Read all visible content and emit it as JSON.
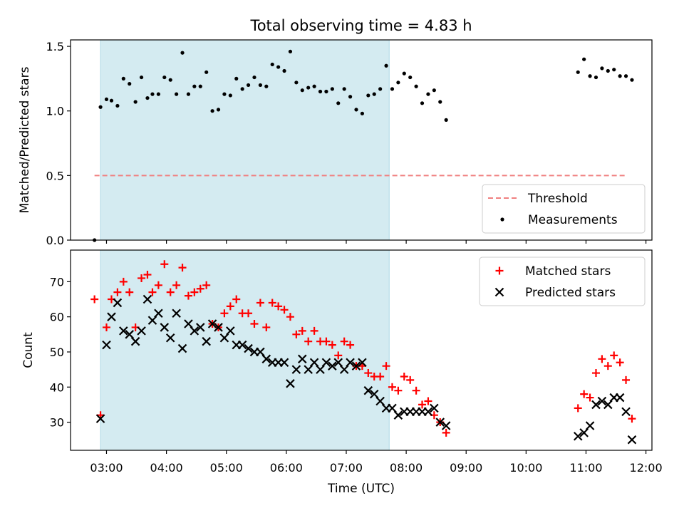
{
  "figure": {
    "title": "Total observing time = 4.83 h",
    "x_tick_labels": [
      "03:00",
      "04:00",
      "05:00",
      "06:00",
      "07:00",
      "08:00",
      "09:00",
      "10:00",
      "11:00",
      "12:00"
    ],
    "xlabel": "Time (UTC)"
  },
  "colors": {
    "shade": "#d4ebf1",
    "shade_edge": "#add8e6",
    "threshold": "#f08080",
    "matched": "#ff0000",
    "predicted": "#000000",
    "measurement": "#000000"
  },
  "chart_data": [
    {
      "type": "scatter",
      "name": "ratio-panel",
      "ylabel": "Matched/Predicted stars",
      "xlim": [
        "02:24",
        "12:06"
      ],
      "ylim": [
        0,
        1.55
      ],
      "y_ticks": [
        0,
        0.5,
        1.0,
        1.5
      ],
      "y_tick_labels": [
        "0.0",
        "0.5",
        "1.0",
        "1.5"
      ],
      "shaded_interval": [
        "02:54",
        "07:43"
      ],
      "threshold": {
        "label": "Threshold",
        "y": 0.5,
        "x_range": [
          "02:48",
          "11:40"
        ]
      },
      "legend_position": "lower-right",
      "series": [
        {
          "name": "Measurements",
          "points": [
            [
              "02:48",
              0.0
            ],
            [
              "02:54",
              1.03
            ],
            [
              "03:00",
              1.09
            ],
            [
              "03:05",
              1.08
            ],
            [
              "03:11",
              1.04
            ],
            [
              "03:17",
              1.25
            ],
            [
              "03:23",
              1.21
            ],
            [
              "03:29",
              1.07
            ],
            [
              "03:35",
              1.26
            ],
            [
              "03:41",
              1.1
            ],
            [
              "03:46",
              1.13
            ],
            [
              "03:52",
              1.13
            ],
            [
              "03:58",
              1.26
            ],
            [
              "04:04",
              1.24
            ],
            [
              "04:10",
              1.13
            ],
            [
              "04:16",
              1.45
            ],
            [
              "04:22",
              1.13
            ],
            [
              "04:28",
              1.19
            ],
            [
              "04:34",
              1.19
            ],
            [
              "04:40",
              1.3
            ],
            [
              "04:46",
              1.0
            ],
            [
              "04:52",
              1.01
            ],
            [
              "04:58",
              1.13
            ],
            [
              "05:04",
              1.12
            ],
            [
              "05:10",
              1.25
            ],
            [
              "05:16",
              1.17
            ],
            [
              "05:22",
              1.2
            ],
            [
              "05:28",
              1.26
            ],
            [
              "05:34",
              1.2
            ],
            [
              "05:40",
              1.19
            ],
            [
              "05:46",
              1.36
            ],
            [
              "05:52",
              1.34
            ],
            [
              "05:58",
              1.31
            ],
            [
              "06:04",
              1.46
            ],
            [
              "06:10",
              1.22
            ],
            [
              "06:16",
              1.16
            ],
            [
              "06:22",
              1.18
            ],
            [
              "06:28",
              1.19
            ],
            [
              "06:34",
              1.15
            ],
            [
              "06:40",
              1.15
            ],
            [
              "06:46",
              1.17
            ],
            [
              "06:52",
              1.06
            ],
            [
              "06:58",
              1.17
            ],
            [
              "07:04",
              1.11
            ],
            [
              "07:10",
              1.01
            ],
            [
              "07:16",
              0.98
            ],
            [
              "07:22",
              1.12
            ],
            [
              "07:28",
              1.13
            ],
            [
              "07:34",
              1.17
            ],
            [
              "07:40",
              1.35
            ],
            [
              "07:46",
              1.17
            ],
            [
              "07:52",
              1.22
            ],
            [
              "07:58",
              1.29
            ],
            [
              "08:04",
              1.26
            ],
            [
              "08:10",
              1.19
            ],
            [
              "08:16",
              1.06
            ],
            [
              "08:22",
              1.13
            ],
            [
              "08:28",
              1.16
            ],
            [
              "08:34",
              1.07
            ],
            [
              "08:40",
              0.93
            ],
            [
              "10:52",
              1.3
            ],
            [
              "10:58",
              1.4
            ],
            [
              "11:04",
              1.27
            ],
            [
              "11:10",
              1.26
            ],
            [
              "11:16",
              1.33
            ],
            [
              "11:22",
              1.31
            ],
            [
              "11:28",
              1.32
            ],
            [
              "11:34",
              1.27
            ],
            [
              "11:40",
              1.27
            ],
            [
              "11:46",
              1.24
            ]
          ]
        }
      ]
    },
    {
      "type": "scatter",
      "name": "count-panel",
      "ylabel": "Count",
      "xlim": [
        "02:24",
        "12:06"
      ],
      "ylim": [
        22,
        79
      ],
      "y_ticks": [
        30,
        40,
        50,
        60,
        70
      ],
      "y_tick_labels": [
        "30",
        "40",
        "50",
        "60",
        "70"
      ],
      "shaded_interval": [
        "02:54",
        "07:43"
      ],
      "legend_position": "upper-right",
      "series": [
        {
          "name": "Matched stars",
          "marker": "plus",
          "points": [
            [
              "02:48",
              65
            ],
            [
              "02:54",
              32
            ],
            [
              "03:00",
              57
            ],
            [
              "03:05",
              65
            ],
            [
              "03:11",
              67
            ],
            [
              "03:17",
              70
            ],
            [
              "03:23",
              67
            ],
            [
              "03:29",
              57
            ],
            [
              "03:35",
              71
            ],
            [
              "03:41",
              72
            ],
            [
              "03:46",
              67
            ],
            [
              "03:52",
              69
            ],
            [
              "03:58",
              75
            ],
            [
              "04:04",
              67
            ],
            [
              "04:10",
              69
            ],
            [
              "04:16",
              74
            ],
            [
              "04:22",
              66
            ],
            [
              "04:28",
              67
            ],
            [
              "04:34",
              68
            ],
            [
              "04:40",
              69
            ],
            [
              "04:46",
              58
            ],
            [
              "04:52",
              57
            ],
            [
              "04:58",
              61
            ],
            [
              "05:04",
              63
            ],
            [
              "05:10",
              65
            ],
            [
              "05:16",
              61
            ],
            [
              "05:22",
              61
            ],
            [
              "05:28",
              58
            ],
            [
              "05:34",
              64
            ],
            [
              "05:40",
              57
            ],
            [
              "05:46",
              64
            ],
            [
              "05:52",
              63
            ],
            [
              "05:58",
              62
            ],
            [
              "06:04",
              60
            ],
            [
              "06:10",
              55
            ],
            [
              "06:16",
              56
            ],
            [
              "06:22",
              53
            ],
            [
              "06:28",
              56
            ],
            [
              "06:34",
              53
            ],
            [
              "06:40",
              53
            ],
            [
              "06:46",
              52
            ],
            [
              "06:52",
              49
            ],
            [
              "06:58",
              53
            ],
            [
              "07:04",
              52
            ],
            [
              "07:10",
              46
            ],
            [
              "07:16",
              46
            ],
            [
              "07:22",
              44
            ],
            [
              "07:28",
              43
            ],
            [
              "07:34",
              43
            ],
            [
              "07:40",
              46
            ],
            [
              "07:46",
              40
            ],
            [
              "07:52",
              39
            ],
            [
              "07:58",
              43
            ],
            [
              "08:04",
              42
            ],
            [
              "08:10",
              39
            ],
            [
              "08:16",
              35
            ],
            [
              "08:22",
              36
            ],
            [
              "08:28",
              32
            ],
            [
              "08:34",
              30
            ],
            [
              "08:40",
              27
            ],
            [
              "10:52",
              34
            ],
            [
              "10:58",
              38
            ],
            [
              "11:04",
              37
            ],
            [
              "11:10",
              44
            ],
            [
              "11:16",
              48
            ],
            [
              "11:22",
              46
            ],
            [
              "11:28",
              49
            ],
            [
              "11:34",
              47
            ],
            [
              "11:40",
              42
            ],
            [
              "11:46",
              31
            ]
          ]
        },
        {
          "name": "Predicted stars",
          "marker": "x",
          "points": [
            [
              "02:54",
              31
            ],
            [
              "03:00",
              52
            ],
            [
              "03:05",
              60
            ],
            [
              "03:11",
              64
            ],
            [
              "03:17",
              56
            ],
            [
              "03:23",
              55
            ],
            [
              "03:29",
              53
            ],
            [
              "03:35",
              56
            ],
            [
              "03:41",
              65
            ],
            [
              "03:46",
              59
            ],
            [
              "03:52",
              61
            ],
            [
              "03:58",
              57
            ],
            [
              "04:04",
              54
            ],
            [
              "04:10",
              61
            ],
            [
              "04:16",
              51
            ],
            [
              "04:22",
              58
            ],
            [
              "04:28",
              56
            ],
            [
              "04:34",
              57
            ],
            [
              "04:40",
              53
            ],
            [
              "04:46",
              58
            ],
            [
              "04:52",
              57
            ],
            [
              "04:58",
              54
            ],
            [
              "05:04",
              56
            ],
            [
              "05:10",
              52
            ],
            [
              "05:16",
              52
            ],
            [
              "05:22",
              51
            ],
            [
              "05:28",
              50
            ],
            [
              "05:34",
              50
            ],
            [
              "05:40",
              48
            ],
            [
              "05:46",
              47
            ],
            [
              "05:52",
              47
            ],
            [
              "05:58",
              47
            ],
            [
              "06:04",
              41
            ],
            [
              "06:10",
              45
            ],
            [
              "06:16",
              48
            ],
            [
              "06:22",
              45
            ],
            [
              "06:28",
              47
            ],
            [
              "06:34",
              45
            ],
            [
              "06:40",
              47
            ],
            [
              "06:46",
              46
            ],
            [
              "06:52",
              47
            ],
            [
              "06:58",
              45
            ],
            [
              "07:04",
              47
            ],
            [
              "07:10",
              46
            ],
            [
              "07:16",
              47
            ],
            [
              "07:22",
              39
            ],
            [
              "07:28",
              38
            ],
            [
              "07:34",
              36
            ],
            [
              "07:40",
              34
            ],
            [
              "07:46",
              34
            ],
            [
              "07:52",
              32
            ],
            [
              "07:58",
              33
            ],
            [
              "08:04",
              33
            ],
            [
              "08:10",
              33
            ],
            [
              "08:16",
              33
            ],
            [
              "08:22",
              33
            ],
            [
              "08:28",
              34
            ],
            [
              "08:34",
              30
            ],
            [
              "08:40",
              29
            ],
            [
              "10:52",
              26
            ],
            [
              "10:58",
              27
            ],
            [
              "11:04",
              29
            ],
            [
              "11:10",
              35
            ],
            [
              "11:16",
              36
            ],
            [
              "11:22",
              35
            ],
            [
              "11:28",
              37
            ],
            [
              "11:34",
              37
            ],
            [
              "11:40",
              33
            ],
            [
              "11:46",
              25
            ]
          ]
        }
      ]
    }
  ]
}
